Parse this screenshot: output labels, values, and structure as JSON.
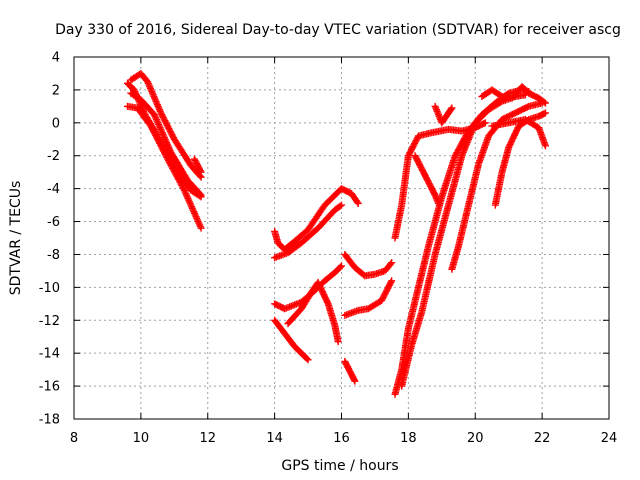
{
  "chart_data": {
    "type": "scatter",
    "title": "Day 330 of 2016, Sidereal Day-to-day VTEC variation (SDTVAR) for receiver ascg",
    "xlabel": "GPS time / hours",
    "ylabel": "SDTVAR / TECUs",
    "xlim": [
      8,
      24
    ],
    "ylim": [
      -18,
      4
    ],
    "xticks": [
      8,
      10,
      12,
      14,
      16,
      18,
      20,
      22,
      24
    ],
    "yticks": [
      -18,
      -16,
      -14,
      -12,
      -10,
      -8,
      -6,
      -4,
      -2,
      0,
      2,
      4
    ],
    "grid": true,
    "legend": "none",
    "marker": "plus",
    "color": "#ff0000",
    "tracks": [
      {
        "points": [
          [
            9.6,
            2.4
          ],
          [
            9.8,
            2.0
          ],
          [
            10.1,
            0.6
          ],
          [
            10.5,
            -0.8
          ],
          [
            11.0,
            -2.7
          ],
          [
            11.5,
            -4.1
          ],
          [
            11.8,
            -4.5
          ]
        ]
      },
      {
        "points": [
          [
            9.7,
            2.6
          ],
          [
            10.0,
            3.0
          ],
          [
            10.2,
            2.5
          ],
          [
            10.6,
            0.6
          ],
          [
            11.0,
            -1.0
          ],
          [
            11.5,
            -2.6
          ],
          [
            11.8,
            -3.3
          ]
        ]
      },
      {
        "points": [
          [
            9.6,
            1.0
          ],
          [
            9.9,
            0.9
          ],
          [
            10.3,
            -0.2
          ],
          [
            10.8,
            -2.2
          ],
          [
            11.3,
            -4.1
          ],
          [
            11.8,
            -6.4
          ]
        ]
      },
      {
        "points": [
          [
            9.7,
            1.8
          ],
          [
            10.0,
            1.4
          ],
          [
            10.4,
            0.5
          ],
          [
            10.9,
            -1.8
          ],
          [
            11.4,
            -3.5
          ],
          [
            11.8,
            -4.4
          ]
        ]
      },
      {
        "points": [
          [
            11.6,
            -2.2
          ],
          [
            11.8,
            -3.0
          ]
        ]
      },
      {
        "points": [
          [
            14.0,
            -6.6
          ],
          [
            14.1,
            -7.3
          ],
          [
            14.3,
            -7.7
          ],
          [
            14.6,
            -7.2
          ],
          [
            15.0,
            -6.5
          ],
          [
            15.5,
            -5.0
          ],
          [
            16.0,
            -4.0
          ],
          [
            16.3,
            -4.3
          ],
          [
            16.5,
            -4.9
          ]
        ]
      },
      {
        "points": [
          [
            14.0,
            -8.2
          ],
          [
            14.4,
            -7.9
          ],
          [
            14.8,
            -7.3
          ],
          [
            15.3,
            -6.4
          ],
          [
            15.8,
            -5.3
          ],
          [
            16.0,
            -5.0
          ]
        ]
      },
      {
        "points": [
          [
            14.0,
            -11.0
          ],
          [
            14.3,
            -11.3
          ],
          [
            14.8,
            -10.9
          ],
          [
            15.2,
            -10.2
          ],
          [
            15.5,
            -9.6
          ],
          [
            15.8,
            -9.1
          ],
          [
            16.0,
            -8.7
          ]
        ]
      },
      {
        "points": [
          [
            14.0,
            -12.0
          ],
          [
            14.3,
            -12.8
          ],
          [
            14.6,
            -13.6
          ],
          [
            14.8,
            -14.0
          ],
          [
            15.0,
            -14.4
          ]
        ]
      },
      {
        "points": [
          [
            14.4,
            -12.2
          ],
          [
            14.8,
            -11.3
          ],
          [
            15.1,
            -10.3
          ],
          [
            15.3,
            -9.7
          ],
          [
            15.6,
            -11.0
          ],
          [
            15.8,
            -12.3
          ],
          [
            15.9,
            -13.3
          ]
        ]
      },
      {
        "points": [
          [
            16.1,
            -14.5
          ],
          [
            16.3,
            -15.3
          ],
          [
            16.4,
            -15.7
          ]
        ]
      },
      {
        "points": [
          [
            16.1,
            -8.0
          ],
          [
            16.4,
            -8.8
          ],
          [
            16.7,
            -9.3
          ],
          [
            17.0,
            -9.2
          ],
          [
            17.3,
            -9.0
          ],
          [
            17.5,
            -8.5
          ]
        ]
      },
      {
        "points": [
          [
            16.1,
            -11.7
          ],
          [
            16.5,
            -11.4
          ],
          [
            16.8,
            -11.3
          ],
          [
            17.2,
            -10.8
          ],
          [
            17.5,
            -9.6
          ]
        ]
      },
      {
        "points": [
          [
            17.6,
            -7.0
          ],
          [
            17.8,
            -5.0
          ],
          [
            18.0,
            -2.0
          ],
          [
            18.3,
            -0.8
          ],
          [
            18.7,
            -0.6
          ],
          [
            19.2,
            -0.4
          ],
          [
            19.6,
            -0.5
          ],
          [
            20.0,
            -0.3
          ],
          [
            20.3,
            0.0
          ]
        ]
      },
      {
        "points": [
          [
            17.6,
            -16.5
          ],
          [
            17.8,
            -15.0
          ],
          [
            18.0,
            -12.5
          ],
          [
            18.3,
            -10.0
          ],
          [
            18.6,
            -7.5
          ],
          [
            19.0,
            -4.5
          ],
          [
            19.4,
            -2.0
          ],
          [
            19.8,
            -0.5
          ],
          [
            20.2,
            0.5
          ],
          [
            20.6,
            1.2
          ],
          [
            21.0,
            1.8
          ],
          [
            21.4,
            2.0
          ],
          [
            21.6,
            1.9
          ]
        ]
      },
      {
        "points": [
          [
            17.8,
            -16.0
          ],
          [
            18.1,
            -13.5
          ],
          [
            18.4,
            -11.5
          ],
          [
            18.8,
            -8.0
          ],
          [
            19.2,
            -5.0
          ],
          [
            19.6,
            -2.0
          ],
          [
            20.0,
            0.0
          ],
          [
            20.4,
            0.8
          ],
          [
            20.8,
            1.3
          ],
          [
            21.2,
            1.6
          ],
          [
            21.5,
            1.7
          ]
        ]
      },
      {
        "points": [
          [
            18.2,
            -2.0
          ],
          [
            18.4,
            -2.8
          ],
          [
            18.6,
            -3.6
          ],
          [
            18.8,
            -4.4
          ],
          [
            18.9,
            -4.9
          ]
        ]
      },
      {
        "points": [
          [
            18.8,
            1.0
          ],
          [
            18.9,
            0.5
          ],
          [
            19.0,
            0.0
          ],
          [
            19.2,
            0.6
          ],
          [
            19.3,
            0.9
          ]
        ]
      },
      {
        "points": [
          [
            19.3,
            -8.9
          ],
          [
            19.5,
            -7.5
          ],
          [
            19.8,
            -5.0
          ],
          [
            20.1,
            -2.5
          ],
          [
            20.4,
            -0.8
          ],
          [
            20.8,
            0.2
          ],
          [
            21.2,
            0.6
          ],
          [
            21.6,
            1.0
          ],
          [
            22.0,
            1.2
          ]
        ]
      },
      {
        "points": [
          [
            20.2,
            1.6
          ],
          [
            20.5,
            2.0
          ],
          [
            20.8,
            1.6
          ],
          [
            21.1,
            1.5
          ],
          [
            21.4,
            2.2
          ],
          [
            21.6,
            1.8
          ],
          [
            21.9,
            1.5
          ],
          [
            22.1,
            1.2
          ]
        ]
      },
      {
        "points": [
          [
            20.6,
            -5.0
          ],
          [
            20.8,
            -3.0
          ],
          [
            21.0,
            -1.5
          ],
          [
            21.3,
            -0.2
          ],
          [
            21.6,
            0.2
          ],
          [
            21.9,
            0.4
          ],
          [
            22.1,
            0.6
          ]
        ]
      },
      {
        "points": [
          [
            20.5,
            -0.2
          ],
          [
            21.0,
            0.0
          ],
          [
            21.5,
            0.2
          ],
          [
            21.9,
            -0.3
          ],
          [
            22.1,
            -1.4
          ]
        ]
      }
    ]
  }
}
